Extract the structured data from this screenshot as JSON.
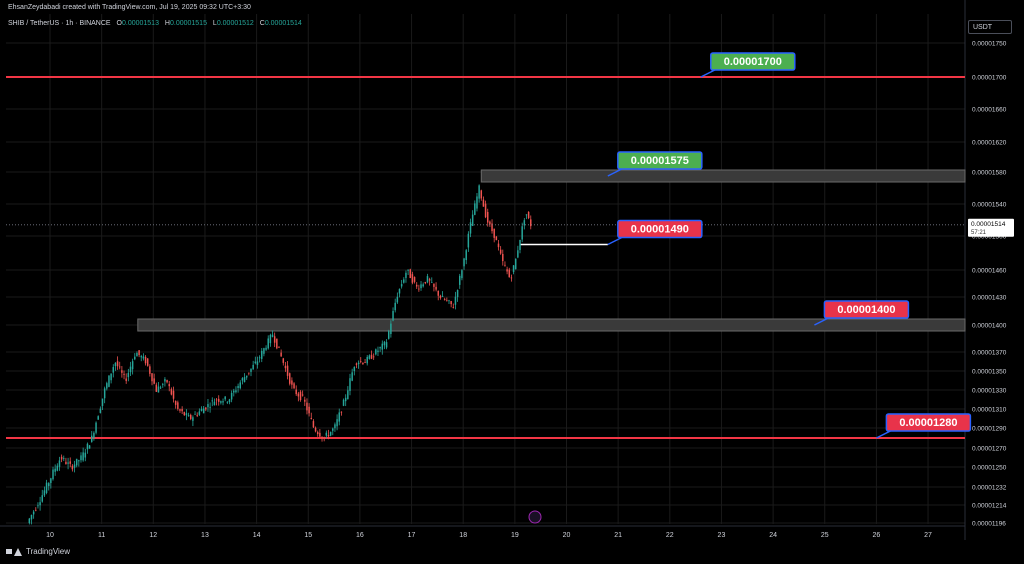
{
  "header": {
    "caption": "EhsanZeydabadi created with TradingView.com, Jul 19, 2025 09:32 UTC+3:30",
    "symbol": "SHIB / TetherUS · 1h · BINANCE",
    "ohlc": [
      {
        "key": "O",
        "value": "0.00001513"
      },
      {
        "key": "H",
        "value": "0.00001515"
      },
      {
        "key": "L",
        "value": "0.00001512"
      },
      {
        "key": "C",
        "value": "0.00001514"
      }
    ]
  },
  "currency_badge": "USDT",
  "footer": {
    "brand": "TradingView"
  },
  "colors": {
    "up": "#26a69a",
    "down": "#ef5350",
    "resistance_line": "#f23645",
    "zone_fill": "#3a3a3a",
    "label_green": "#4caf50",
    "label_red": "#e8334a",
    "label_border": "#2962ff",
    "grid": "#1a1a1a"
  },
  "chart_data": {
    "type": "candlestick",
    "title": "",
    "xlabel": "",
    "ylabel": "",
    "x_ticks": [
      "10",
      "11",
      "12",
      "13",
      "14",
      "15",
      "16",
      "17",
      "18",
      "19",
      "20",
      "21",
      "22",
      "23",
      "24",
      "25",
      "26",
      "27"
    ],
    "y_ticks": [
      "0.00001750",
      "0.00001700",
      "0.00001660",
      "0.00001620",
      "0.00001580",
      "0.00001540",
      "0.00001500",
      "0.00001460",
      "0.00001430",
      "0.00001400",
      "0.00001370",
      "0.00001350",
      "0.00001330",
      "0.00001310",
      "0.00001290",
      "0.00001270",
      "0.00001250",
      "0.00001232",
      "0.00001214",
      "0.00001196"
    ],
    "ylim": [
      1.196e-05,
      1.76e-05
    ],
    "current_price": "0.00001514",
    "countdown": "57:21",
    "price_path": [
      [
        9.6,
        1.196e-05
      ],
      [
        9.85,
        1.22e-05
      ],
      [
        10.05,
        1.24e-05
      ],
      [
        10.25,
        1.26e-05
      ],
      [
        10.45,
        1.25e-05
      ],
      [
        10.65,
        1.26e-05
      ],
      [
        10.85,
        1.28e-05
      ],
      [
        11.1,
        1.33e-05
      ],
      [
        11.3,
        1.36e-05
      ],
      [
        11.5,
        1.34e-05
      ],
      [
        11.7,
        1.37e-05
      ],
      [
        11.9,
        1.36e-05
      ],
      [
        12.1,
        1.33e-05
      ],
      [
        12.3,
        1.34e-05
      ],
      [
        12.5,
        1.31e-05
      ],
      [
        12.75,
        1.3e-05
      ],
      [
        13.0,
        1.31e-05
      ],
      [
        13.25,
        1.32e-05
      ],
      [
        13.5,
        1.32e-05
      ],
      [
        13.75,
        1.34e-05
      ],
      [
        14.05,
        1.36e-05
      ],
      [
        14.35,
        1.39e-05
      ],
      [
        14.55,
        1.36e-05
      ],
      [
        14.75,
        1.33e-05
      ],
      [
        14.95,
        1.32e-05
      ],
      [
        15.15,
        1.29e-05
      ],
      [
        15.35,
        1.28e-05
      ],
      [
        15.55,
        1.29e-05
      ],
      [
        15.75,
        1.32e-05
      ],
      [
        15.95,
        1.36e-05
      ],
      [
        16.15,
        1.36e-05
      ],
      [
        16.35,
        1.37e-05
      ],
      [
        16.55,
        1.38e-05
      ],
      [
        16.75,
        1.43e-05
      ],
      [
        16.95,
        1.46e-05
      ],
      [
        17.15,
        1.44e-05
      ],
      [
        17.35,
        1.45e-05
      ],
      [
        17.6,
        1.43e-05
      ],
      [
        17.85,
        1.42e-05
      ],
      [
        18.05,
        1.47e-05
      ],
      [
        18.2,
        1.52e-05
      ],
      [
        18.35,
        1.56e-05
      ],
      [
        18.5,
        1.52e-05
      ],
      [
        18.65,
        1.5e-05
      ],
      [
        18.8,
        1.47e-05
      ],
      [
        18.95,
        1.45e-05
      ],
      [
        19.05,
        1.47e-05
      ],
      [
        19.15,
        1.5e-05
      ],
      [
        19.25,
        1.53e-05
      ],
      [
        19.35,
        1.514e-05
      ]
    ],
    "horizontal_lines": [
      {
        "price": 1.7e-05,
        "style": "line",
        "label": "0.00001700",
        "label_color": "green",
        "label_x": 22.6
      },
      {
        "price": 1.575e-05,
        "style": "zone",
        "x_start": 18.35,
        "label": "0.00001575",
        "label_color": "green",
        "label_x": 20.8
      },
      {
        "price": 1.49e-05,
        "style": "short",
        "x_start": 19.1,
        "x_end": 20.8,
        "label": "0.00001490",
        "label_color": "red",
        "label_x": 20.8
      },
      {
        "price": 1.4e-05,
        "style": "zone",
        "x_start": 11.7,
        "label": "0.00001400",
        "label_color": "red",
        "label_x": 24.8
      },
      {
        "price": 1.28e-05,
        "style": "line",
        "label": "0.00001280",
        "label_color": "red",
        "label_x": 26.0
      }
    ]
  }
}
